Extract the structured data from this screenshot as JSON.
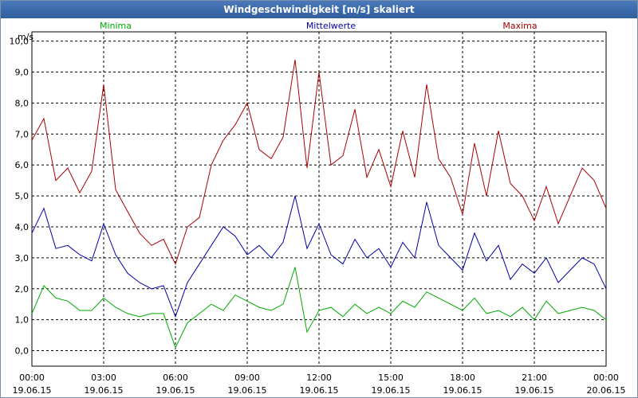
{
  "window": {
    "title": "Windgeschwindigkeit [m/s] skaliert"
  },
  "chart_data": {
    "type": "line",
    "title": "Windgeschwindigkeit [m/s] skaliert",
    "ylabel": "m/s",
    "ylim": [
      -0.5,
      10.3
    ],
    "xlim": [
      0,
      24
    ],
    "grid": true,
    "legend_placement": "top",
    "y_ticks": [
      "0,0",
      "1,0",
      "2,0",
      "3,0",
      "4,0",
      "5,0",
      "6,0",
      "7,0",
      "8,0",
      "9,0",
      "10,0"
    ],
    "x_ticks": [
      {
        "time": "00:00",
        "date": "19.06.15"
      },
      {
        "time": "03:00",
        "date": "19.06.15"
      },
      {
        "time": "06:00",
        "date": "19.06.15"
      },
      {
        "time": "09:00",
        "date": "19.06.15"
      },
      {
        "time": "12:00",
        "date": "19.06.15"
      },
      {
        "time": "15:00",
        "date": "19.06.15"
      },
      {
        "time": "18:00",
        "date": "19.06.15"
      },
      {
        "time": "21:00",
        "date": "19.06.15"
      },
      {
        "time": "00:00",
        "date": "20.06.15"
      }
    ],
    "x": [
      0,
      0.5,
      1,
      1.5,
      2,
      2.5,
      3,
      3.5,
      4,
      4.5,
      5,
      5.5,
      6,
      6.5,
      7,
      7.5,
      8,
      8.5,
      9,
      9.5,
      10,
      10.5,
      11,
      11.5,
      12,
      12.5,
      13,
      13.5,
      14,
      14.5,
      15,
      15.5,
      16,
      16.5,
      17,
      17.5,
      18,
      18.5,
      19,
      19.5,
      20,
      20.5,
      21,
      21.5,
      22,
      22.5,
      23,
      23.5,
      24
    ],
    "series": [
      {
        "name": "Minima",
        "color": "#00aa00",
        "values": [
          1.2,
          2.1,
          1.7,
          1.6,
          1.3,
          1.3,
          1.7,
          1.4,
          1.2,
          1.1,
          1.2,
          1.2,
          0.1,
          0.9,
          1.2,
          1.5,
          1.3,
          1.8,
          1.6,
          1.4,
          1.3,
          1.5,
          2.7,
          0.6,
          1.3,
          1.4,
          1.1,
          1.5,
          1.2,
          1.4,
          1.2,
          1.6,
          1.4,
          1.9,
          1.7,
          1.5,
          1.3,
          1.7,
          1.2,
          1.3,
          1.1,
          1.4,
          1.0,
          1.6,
          1.2,
          1.3,
          1.4,
          1.3,
          1.0
        ]
      },
      {
        "name": "Mittelwerte",
        "color": "#0000aa",
        "values": [
          3.8,
          4.6,
          3.3,
          3.4,
          3.1,
          2.9,
          4.1,
          3.1,
          2.5,
          2.2,
          2.0,
          2.1,
          1.1,
          2.2,
          2.8,
          3.4,
          4.0,
          3.7,
          3.1,
          3.4,
          3.0,
          3.5,
          5.0,
          3.3,
          4.1,
          3.1,
          2.8,
          3.6,
          3.0,
          3.3,
          2.7,
          3.5,
          3.0,
          4.8,
          3.4,
          3.0,
          2.6,
          3.8,
          2.9,
          3.4,
          2.3,
          2.8,
          2.5,
          3.0,
          2.2,
          2.6,
          3.0,
          2.8,
          2.0
        ]
      },
      {
        "name": "Maxima",
        "color": "#aa0000",
        "values": [
          6.8,
          7.5,
          5.5,
          5.9,
          5.1,
          5.8,
          8.6,
          5.2,
          4.5,
          3.8,
          3.4,
          3.6,
          2.8,
          4.0,
          4.3,
          6.0,
          6.8,
          7.3,
          8.0,
          6.5,
          6.2,
          6.9,
          9.4,
          5.9,
          9.0,
          6.0,
          6.3,
          7.8,
          5.6,
          6.5,
          5.3,
          7.1,
          5.6,
          8.6,
          6.2,
          5.6,
          4.4,
          6.7,
          5.0,
          7.1,
          5.4,
          5.0,
          4.2,
          5.3,
          4.1,
          5.0,
          5.9,
          5.5,
          4.6
        ]
      }
    ]
  }
}
